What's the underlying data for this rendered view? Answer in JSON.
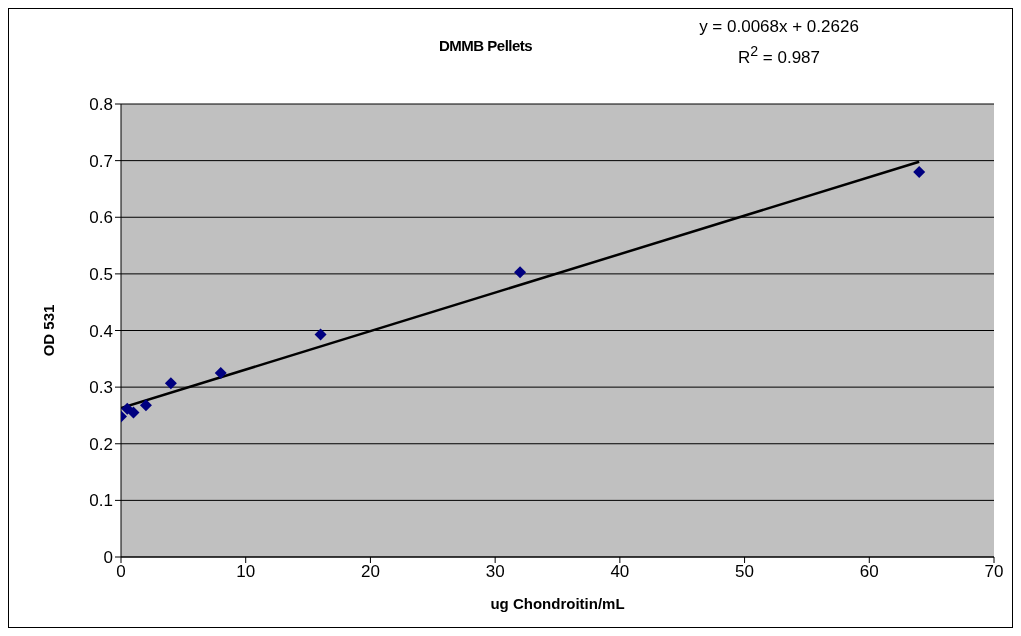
{
  "chart_data": {
    "type": "scatter",
    "title": "DMMB Pellets",
    "xlabel": "ug Chondroitin/mL",
    "ylabel": "OD 531",
    "x": [
      0,
      0.5,
      1,
      2,
      4,
      8,
      16,
      32,
      64
    ],
    "series": [
      {
        "color": "#000080",
        "marker": "diamond",
        "values": [
          0.248,
          0.262,
          0.255,
          0.268,
          0.307,
          0.325,
          0.393,
          0.503,
          0.68
        ]
      },
      {
        "type": "line",
        "color": "#000000",
        "marker": "none",
        "x": [
          0,
          64
        ],
        "values": [
          0.263,
          0.698
        ]
      }
    ],
    "annotations": [
      "y = 0.0068x + 0.2626",
      "R$^{2}$ = 0.987"
    ],
    "xlim": [
      0,
      70
    ],
    "xticks": [
      0,
      10,
      20,
      30,
      40,
      50,
      60,
      70
    ],
    "ylim": [
      0,
      0.8
    ],
    "yticks": [
      0,
      0.1,
      0.2,
      0.3,
      0.4,
      0.5,
      0.6,
      0.7,
      0.8
    ],
    "grid": "y",
    "legend": false
  }
}
